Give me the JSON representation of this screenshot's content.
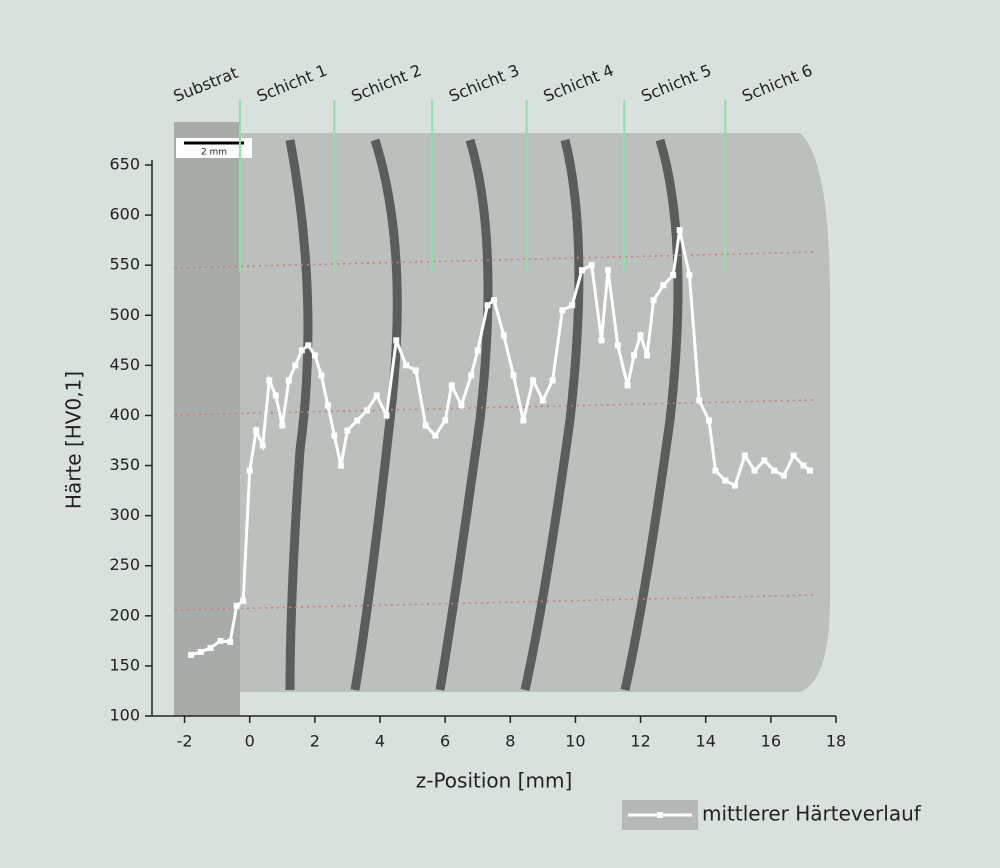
{
  "chart_data": {
    "type": "line",
    "xlabel": "z-Position [mm]",
    "ylabel": "Härte [HV0,1]",
    "scale_bar_label": "2 mm",
    "layers": [
      "Substrat",
      "Schicht 1",
      "Schicht 2",
      "Schicht 3",
      "Schicht 4",
      "Schicht 5",
      "Schicht 6"
    ],
    "layer_boundaries": [
      -0.3,
      2.6,
      5.6,
      8.5,
      11.5,
      14.6
    ],
    "x": [
      -1.8,
      -1.5,
      -1.2,
      -0.9,
      -0.6,
      -0.4,
      -0.2,
      0,
      0.2,
      0.4,
      0.6,
      0.8,
      1.0,
      1.2,
      1.4,
      1.6,
      1.8,
      2.0,
      2.2,
      2.4,
      2.6,
      2.8,
      3.0,
      3.3,
      3.6,
      3.9,
      4.2,
      4.5,
      4.8,
      5.1,
      5.4,
      5.7,
      6.0,
      6.2,
      6.5,
      6.8,
      7.0,
      7.3,
      7.5,
      7.8,
      8.1,
      8.4,
      8.7,
      9.0,
      9.3,
      9.6,
      9.9,
      10.2,
      10.5,
      10.8,
      11.0,
      11.3,
      11.6,
      11.8,
      12.0,
      12.2,
      12.4,
      12.7,
      13.0,
      13.2,
      13.5,
      13.8,
      14.1,
      14.3,
      14.6,
      14.9,
      15.2,
      15.5,
      15.8,
      16.1,
      16.4,
      16.7,
      17.0,
      17.2
    ],
    "series": [
      {
        "name": "mittlerer Härteverlauf",
        "color": "#ffffff",
        "values": [
          161,
          164,
          168,
          175,
          174,
          210,
          215,
          345,
          385,
          370,
          435,
          420,
          390,
          435,
          450,
          465,
          470,
          460,
          440,
          410,
          380,
          350,
          385,
          395,
          405,
          420,
          400,
          475,
          450,
          445,
          390,
          380,
          395,
          430,
          410,
          440,
          465,
          510,
          515,
          480,
          440,
          395,
          435,
          415,
          435,
          505,
          510,
          545,
          550,
          475,
          545,
          470,
          430,
          460,
          480,
          460,
          515,
          530,
          540,
          585,
          540,
          415,
          395,
          345,
          335,
          330,
          360,
          345,
          355,
          345,
          340,
          360,
          350,
          345
        ]
      }
    ],
    "xlim": [
      -3,
      18
    ],
    "xticks": [
      -2,
      0,
      2,
      4,
      6,
      8,
      10,
      12,
      14,
      16,
      18
    ],
    "ylim": [
      100,
      650
    ],
    "yticks": [
      100,
      150,
      200,
      250,
      300,
      350,
      400,
      450,
      500,
      550,
      600,
      650
    ]
  }
}
